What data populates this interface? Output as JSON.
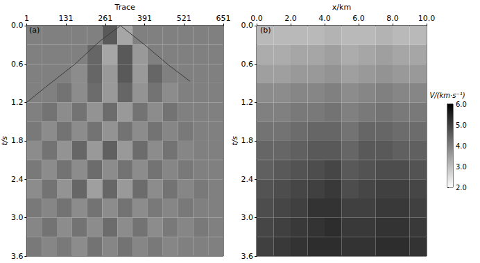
{
  "chart_data": [
    {
      "type": "heatmap",
      "panel_label": "(a)",
      "x_label": "Trace",
      "y_label": "t/s",
      "xlim": [
        1,
        651
      ],
      "xticks": [
        1,
        131,
        261,
        391,
        521,
        651
      ],
      "ylim": [
        0,
        3.6
      ],
      "yticks": [
        {
          "value": 0,
          "label": "0.0"
        },
        0.6,
        1.2,
        1.8,
        2.4,
        {
          "value": 3,
          "label": "3.0"
        },
        3.6
      ],
      "x_bins": [
        1,
        51,
        101,
        151,
        201,
        251,
        301,
        351,
        401,
        451,
        501,
        551,
        601,
        651
      ],
      "y_bins": [
        0,
        0.3,
        0.6,
        0.9,
        1.2,
        1.5,
        1.8,
        2.1,
        2.4,
        2.7,
        3.0,
        3.3,
        3.6
      ],
      "cell_range": [
        -1,
        1
      ],
      "cells": [
        [
          0,
          0,
          0,
          0,
          0,
          0.3,
          -0.3,
          0,
          0,
          0,
          0,
          0,
          0
        ],
        [
          0,
          0,
          0,
          0,
          0.2,
          -0.3,
          0.3,
          -0.2,
          0,
          0,
          0,
          0,
          0
        ],
        [
          0,
          0,
          0,
          -0.1,
          0.2,
          -0.2,
          0.3,
          -0.2,
          0.2,
          0,
          0,
          0,
          0
        ],
        [
          0,
          0,
          0.1,
          -0.1,
          0.15,
          -0.2,
          0.2,
          -0.15,
          0.1,
          -0.1,
          0,
          0,
          0
        ],
        [
          0,
          0.1,
          -0.1,
          0.1,
          -0.15,
          0.15,
          -0.2,
          0.1,
          -0.1,
          0.1,
          0,
          0,
          0
        ],
        [
          0.05,
          -0.1,
          0.1,
          -0.1,
          0.1,
          -0.15,
          0.1,
          -0.1,
          0.1,
          -0.05,
          0.05,
          0,
          0
        ],
        [
          -0.1,
          0.1,
          -0.15,
          0.2,
          -0.2,
          0.25,
          -0.2,
          0.15,
          -0.1,
          0.1,
          -0.05,
          0,
          0
        ],
        [
          0.05,
          -0.1,
          0.1,
          -0.1,
          0.15,
          -0.1,
          0.1,
          -0.1,
          0.1,
          -0.05,
          0.05,
          0,
          0
        ],
        [
          -0.1,
          0.1,
          -0.15,
          0.2,
          -0.25,
          0.2,
          -0.2,
          0.15,
          -0.1,
          0.1,
          -0.05,
          0.05,
          0
        ],
        [
          0.05,
          -0.05,
          0.1,
          -0.1,
          0.1,
          -0.1,
          0.1,
          -0.1,
          0.05,
          -0.05,
          0.05,
          0,
          0
        ],
        [
          -0.05,
          0.1,
          -0.1,
          0.1,
          -0.1,
          0.15,
          -0.1,
          0.1,
          -0.1,
          0.05,
          -0.05,
          0.05,
          0
        ],
        [
          0.05,
          -0.05,
          0.05,
          -0.1,
          0.1,
          -0.05,
          0.1,
          -0.05,
          0.05,
          -0.05,
          0,
          0,
          0
        ]
      ],
      "first_arrival": {
        "x": [
          1,
          61,
          161,
          241,
          311,
          391,
          471,
          541
        ],
        "y": [
          1.2,
          0.97,
          0.6,
          0.25,
          0.0,
          0.3,
          0.62,
          0.87
        ]
      }
    },
    {
      "type": "heatmap",
      "panel_label": "(b)",
      "x_label": "x/km",
      "y_label": "t/s",
      "xlim": [
        0,
        10
      ],
      "xticks": [
        {
          "value": 0,
          "label": "0.0"
        },
        {
          "value": 2,
          "label": "2.0"
        },
        {
          "value": 4,
          "label": "4.0"
        },
        {
          "value": 6,
          "label": "6.0"
        },
        {
          "value": 8,
          "label": "8.0"
        },
        {
          "value": 10,
          "label": "10.0"
        }
      ],
      "ylim": [
        0,
        3.6
      ],
      "yticks": [
        {
          "value": 0,
          "label": "0.0"
        },
        0.6,
        1.2,
        1.8,
        2.4,
        {
          "value": 3,
          "label": "3.0"
        },
        3.6
      ],
      "x_bins": [
        0,
        1,
        2,
        3,
        4,
        5,
        6,
        7,
        8,
        9,
        10
      ],
      "y_bins": [
        0,
        0.3,
        0.6,
        0.9,
        1.2,
        1.5,
        1.8,
        2.1,
        2.4,
        2.7,
        3.0,
        3.3,
        3.6
      ],
      "cells": [
        [
          3.1,
          3.1,
          3.1,
          3.1,
          3.2,
          3.1,
          3.1,
          3.2,
          3.1,
          3.1
        ],
        [
          3.3,
          3.3,
          3.4,
          3.4,
          3.5,
          3.3,
          3.4,
          3.5,
          3.4,
          3.4
        ],
        [
          3.5,
          3.5,
          3.6,
          3.6,
          3.7,
          3.5,
          3.6,
          3.7,
          3.6,
          3.6
        ],
        [
          3.8,
          3.8,
          3.9,
          3.9,
          4.0,
          3.8,
          3.9,
          4.0,
          3.9,
          3.9
        ],
        [
          4.0,
          4.0,
          4.1,
          4.1,
          4.2,
          4.0,
          4.1,
          4.2,
          4.1,
          4.1
        ],
        [
          4.2,
          4.2,
          4.3,
          4.4,
          4.4,
          4.2,
          4.4,
          4.4,
          4.3,
          4.3
        ],
        [
          4.4,
          4.4,
          4.5,
          4.6,
          4.6,
          4.4,
          4.6,
          4.6,
          4.5,
          4.5
        ],
        [
          4.5,
          4.6,
          4.7,
          4.8,
          4.9,
          4.6,
          4.7,
          4.8,
          4.8,
          4.7
        ],
        [
          4.7,
          4.8,
          4.9,
          5.0,
          5.1,
          4.8,
          4.9,
          5.0,
          5.0,
          4.9
        ],
        [
          4.8,
          4.9,
          5.0,
          5.2,
          5.2,
          5.0,
          5.0,
          5.1,
          5.1,
          5.0
        ],
        [
          4.9,
          5.0,
          5.1,
          5.2,
          5.3,
          5.1,
          5.1,
          5.2,
          5.2,
          5.1
        ],
        [
          5.0,
          5.1,
          5.2,
          5.3,
          5.3,
          5.2,
          5.2,
          5.3,
          5.3,
          5.2
        ]
      ],
      "colorbar": {
        "label": "V/(km·s⁻¹)",
        "range": [
          2,
          6
        ],
        "ticks": [
          {
            "value": 2,
            "label": "2.0"
          },
          {
            "value": 3,
            "label": "3.0"
          },
          {
            "value": 4,
            "label": "4.0"
          },
          {
            "value": 5,
            "label": "5.0"
          },
          {
            "value": 6,
            "label": "6.0"
          }
        ]
      }
    }
  ]
}
